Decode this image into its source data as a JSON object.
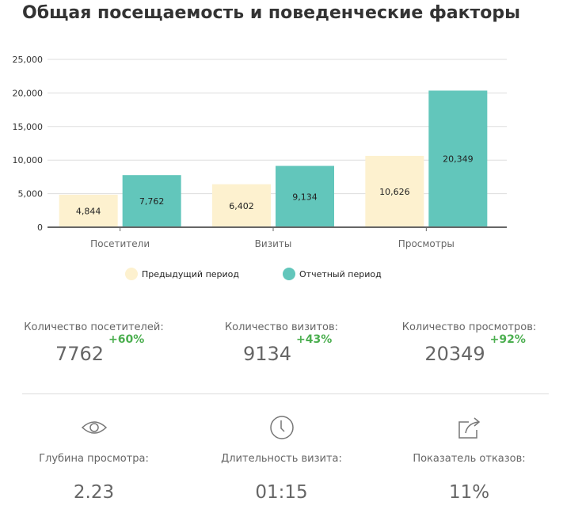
{
  "title": "Общая посещаемость и поведенческие факторы",
  "chart_data": {
    "type": "bar",
    "categories": [
      "Посетители",
      "Визиты",
      "Просмотры"
    ],
    "series": [
      {
        "name": "Предыдущий период",
        "values": [
          4844,
          6402,
          10626
        ],
        "color": "#fdf1cf"
      },
      {
        "name": "Отчетный период",
        "values": [
          7762,
          9134,
          20349
        ],
        "color": "#62c6bb"
      }
    ],
    "value_labels": [
      [
        "4,844",
        "6,402",
        "10,626"
      ],
      [
        "7,762",
        "9,134",
        "20,349"
      ]
    ],
    "yticks": [
      0,
      5000,
      10000,
      15000,
      20000,
      25000
    ],
    "ytick_labels": [
      "0",
      "5,000",
      "10,000",
      "15,000",
      "20,000",
      "25,000"
    ],
    "ylim": [
      0,
      25000
    ],
    "grid": true,
    "legend": "bottom"
  },
  "stats": [
    {
      "label": "Количество посетителей:",
      "value": "7762",
      "delta": "+60%"
    },
    {
      "label": "Количество визитов:",
      "value": "9134",
      "delta": "+43%"
    },
    {
      "label": "Количество просмотров:",
      "value": "20349",
      "delta": "+92%"
    }
  ],
  "metrics": [
    {
      "icon": "eye-icon",
      "label": "Глубина просмотра:",
      "value": "2.23"
    },
    {
      "icon": "clock-icon",
      "label": "Длительность визита:",
      "value": "01:15"
    },
    {
      "icon": "share-icon",
      "label": "Показатель отказов:",
      "value": "11%"
    }
  ]
}
